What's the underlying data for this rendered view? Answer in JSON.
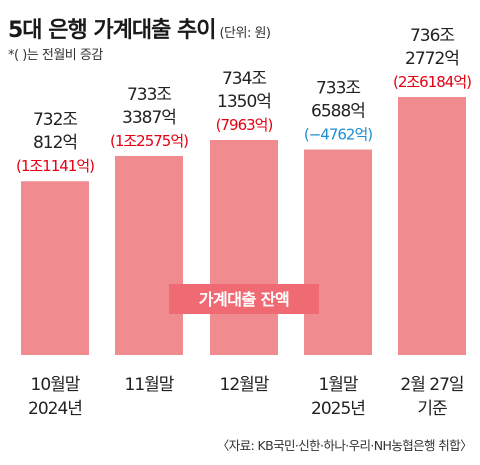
{
  "header": {
    "title": "5대 은행 가계대출 추이",
    "unit": "(단위: 원)",
    "note": "*( )는 전월비 증감"
  },
  "source": "〈자료: KB국민·신한·하나·우리·NH농협은행 취합〉",
  "colors": {
    "bar": "#f08c8f",
    "increase": "#e60012",
    "decrease": "#1c8fd3",
    "tag_bg": "#f06a74"
  },
  "chart_data": {
    "type": "bar",
    "series_label": "가계대출 잔액",
    "categories": [
      [
        "10월말",
        "2024년"
      ],
      [
        "11월말",
        ""
      ],
      [
        "12월말",
        ""
      ],
      [
        "1월말",
        "2025년"
      ],
      [
        "2월 27일",
        "기준"
      ]
    ],
    "values": [
      7320812,
      7333387,
      7341350,
      7336588,
      7362772
    ],
    "value_unit": "억원",
    "value_labels": [
      [
        "732조",
        "812억"
      ],
      [
        "733조",
        "3387억"
      ],
      [
        "734조",
        "1350억"
      ],
      [
        "733조",
        "6588억"
      ],
      [
        "736조",
        "2772억"
      ]
    ],
    "change_labels": [
      "(1조1141억)",
      "(1조2575억)",
      "(7963억)",
      "(−4762억)",
      "(2조6184억)"
    ],
    "change_direction": [
      "up",
      "up",
      "up",
      "down",
      "up"
    ]
  }
}
